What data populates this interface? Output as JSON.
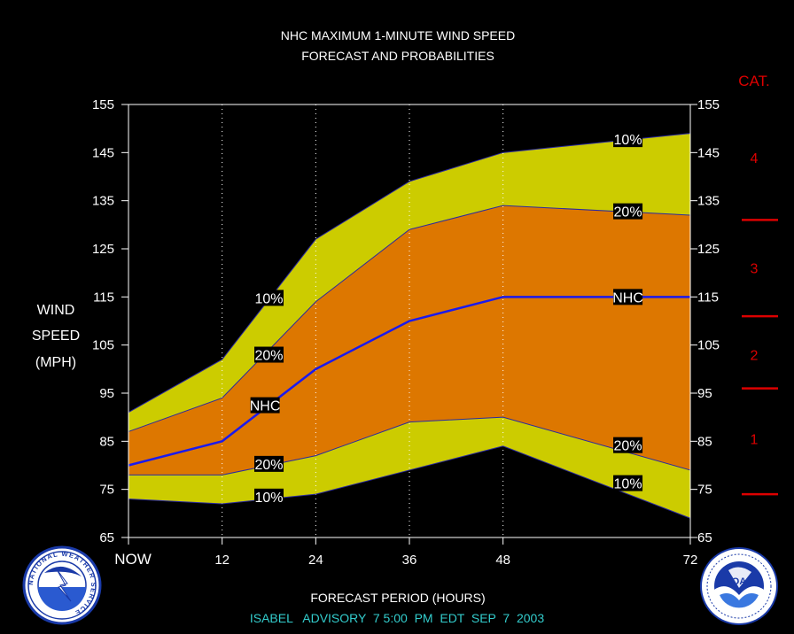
{
  "chart_data": {
    "type": "area",
    "title": "NHC MAXIMUM 1-MINUTE WIND SPEED",
    "subtitle": "FORECAST AND PROBABILITIES",
    "xlabel": "FORECAST PERIOD (HOURS)",
    "ylabel": [
      "WIND",
      "SPEED",
      "(MPH)"
    ],
    "footer": "ISABEL   ADVISORY  7 5:00  PM  EDT  SEP  7  2003",
    "x": [
      0,
      12,
      24,
      36,
      48,
      72
    ],
    "x_tick_labels": [
      "NOW",
      "12",
      "24",
      "36",
      "48",
      "72"
    ],
    "ylim": [
      65,
      155
    ],
    "y_ticks": [
      65,
      75,
      85,
      95,
      105,
      115,
      125,
      135,
      145,
      155
    ],
    "grid": "vertical dotted lines at 12, 24, 36, 48",
    "series": [
      {
        "name": "10%",
        "role": "upper-10",
        "values": [
          91,
          102,
          127,
          139,
          145,
          149
        ]
      },
      {
        "name": "20%",
        "role": "upper-20",
        "values": [
          87,
          94,
          114,
          129,
          134,
          132
        ]
      },
      {
        "name": "NHC",
        "role": "forecast",
        "values": [
          80,
          85,
          100,
          110,
          115,
          115
        ]
      },
      {
        "name": "20%",
        "role": "lower-20",
        "values": [
          78,
          78,
          82,
          89,
          90,
          79
        ]
      },
      {
        "name": "10%",
        "role": "lower-10",
        "values": [
          73,
          72,
          74,
          79,
          84,
          69
        ]
      }
    ],
    "band_labels": [
      {
        "text": "10%",
        "x": 18,
        "y": 114.8
      },
      {
        "text": "20%",
        "x": 18,
        "y": 103
      },
      {
        "text": "NHC",
        "x": 17.5,
        "y": 92.5
      },
      {
        "text": "20%",
        "x": 18,
        "y": 80.3
      },
      {
        "text": "10%",
        "x": 18,
        "y": 73.5
      },
      {
        "text": "10%",
        "x": 64,
        "y": 147.8
      },
      {
        "text": "20%",
        "x": 64,
        "y": 132.8
      },
      {
        "text": "NHC",
        "x": 64,
        "y": 115
      },
      {
        "text": "20%",
        "x": 64,
        "y": 84.2
      },
      {
        "text": "10%",
        "x": 64,
        "y": 76.3
      }
    ],
    "colors": {
      "outer_band": "#cccc00",
      "inner_band": "#dd7700",
      "forecast_line": "#1a1aee",
      "category": "#dd0000"
    },
    "category_title": "CAT.",
    "categories": [
      {
        "label": "4",
        "y": 144
      },
      {
        "label": "3",
        "y": 121
      },
      {
        "label": "2",
        "y": 103
      },
      {
        "label": "1",
        "y": 85.5
      }
    ],
    "category_boundaries": [
      131,
      111,
      96,
      74
    ]
  },
  "logos": {
    "nws": {
      "text": "NATIONAL WEATHER SERVICE"
    },
    "noaa": {
      "text": "NOAA"
    }
  }
}
